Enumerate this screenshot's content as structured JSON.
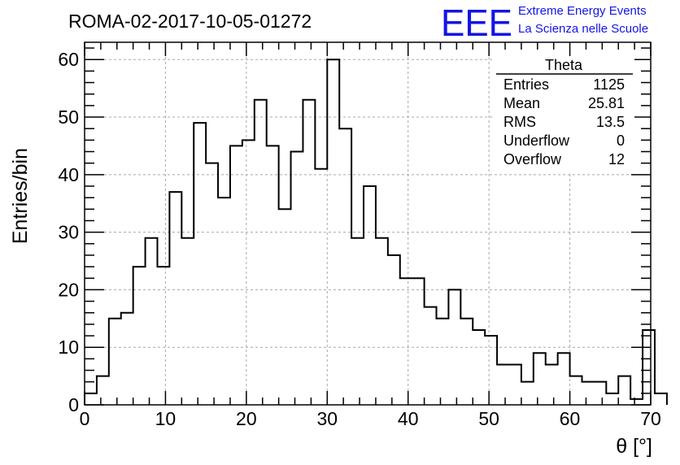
{
  "chart_data": {
    "type": "bar",
    "title": "ROMA-02-2017-10-05-01272",
    "xlabel": "θ [°]",
    "ylabel": "Entries/bin",
    "xlim": [
      0,
      70
    ],
    "ylim": [
      0,
      63
    ],
    "x_ticks": [
      0,
      10,
      20,
      30,
      40,
      50,
      60,
      70
    ],
    "y_ticks": [
      0,
      10,
      20,
      30,
      40,
      50,
      60
    ],
    "grid": true,
    "bin_width": 1.5,
    "bin_start": 0,
    "values": [
      2,
      5,
      15,
      16,
      24,
      29,
      24,
      37,
      29,
      49,
      42,
      36,
      45,
      46,
      53,
      45,
      34,
      44,
      53,
      41,
      60,
      48,
      29,
      38,
      29,
      26,
      22,
      22,
      17,
      15,
      20,
      15,
      13,
      12,
      7,
      7,
      4,
      9,
      7,
      9,
      5,
      4,
      4,
      2,
      5,
      1,
      13,
      2
    ],
    "stats": {
      "title": "Theta",
      "placement": "top-right",
      "rows": [
        {
          "label": "Entries",
          "value": "1125"
        },
        {
          "label": "Mean",
          "value": "25.81"
        },
        {
          "label": "RMS",
          "value": "13.5"
        },
        {
          "label": "Underflow",
          "value": "0"
        },
        {
          "label": "Overflow",
          "value": "12"
        }
      ]
    }
  },
  "logo": {
    "mark": "EEE",
    "line1": "Extreme Energy Events",
    "line2": "La Scienza nelle Scuole",
    "color": "#1414e6"
  }
}
